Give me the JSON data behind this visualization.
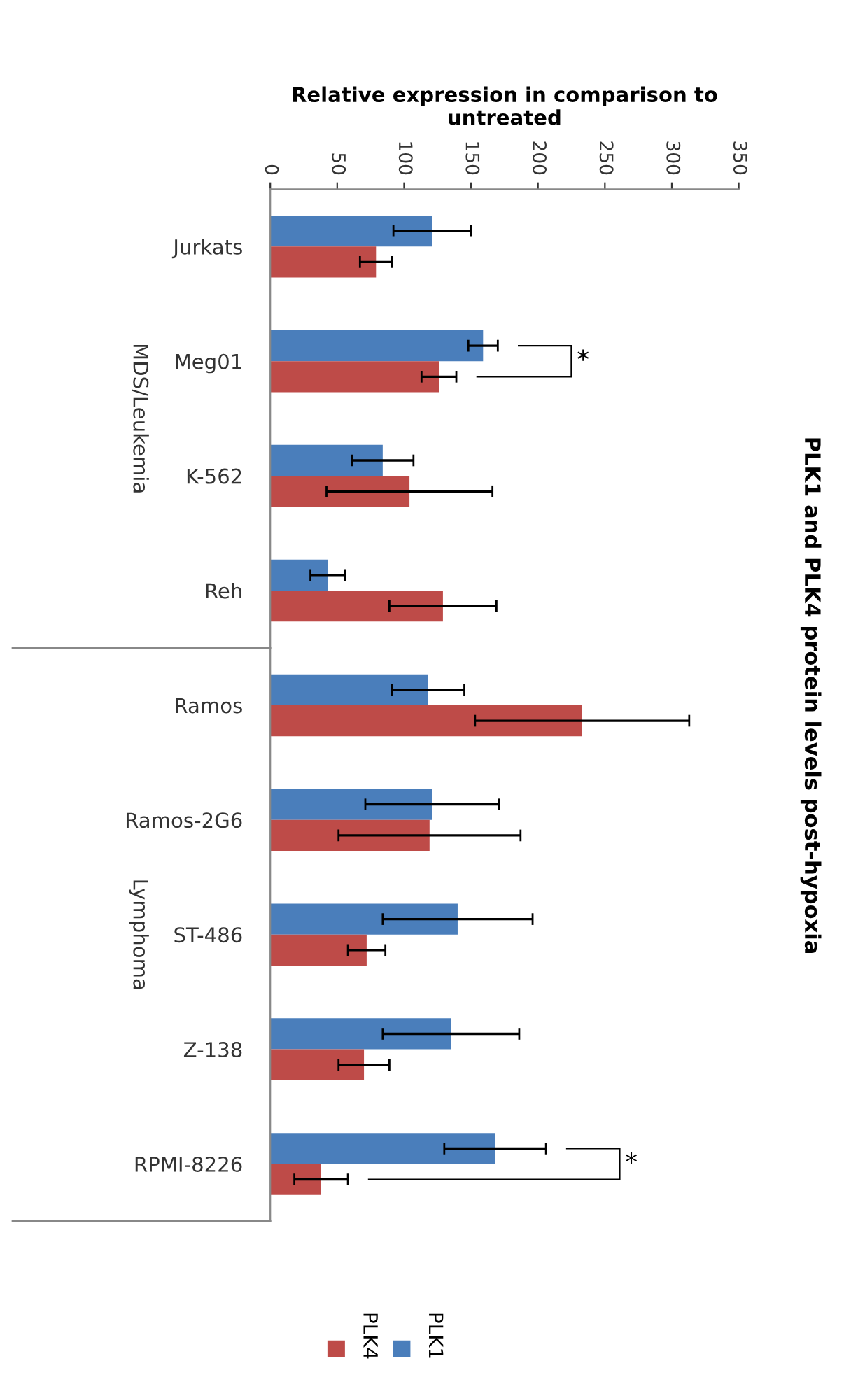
{
  "chart_data": {
    "type": "bar",
    "orientation": "horizontal",
    "title": "PLK1 and PLK4 protein levels post-hypoxia",
    "xlabel": "Relative expression in comparison to\nuntreated",
    "categories": [
      "Jurkats",
      "Meg01",
      "K-562",
      "Reh",
      "Ramos",
      "Ramos-2G6",
      "ST-486",
      "Z-138",
      "RPMI-8226"
    ],
    "series": [
      {
        "name": "PLK1",
        "color": "#4a7ebb",
        "values": [
          121,
          159,
          84,
          43,
          118,
          121,
          140,
          135,
          168
        ],
        "errors": [
          29,
          11,
          23,
          13,
          27,
          50,
          56,
          51,
          38
        ]
      },
      {
        "name": "PLK4",
        "color": "#be4b48",
        "values": [
          79,
          126,
          104,
          129,
          233,
          119,
          72,
          70,
          38
        ],
        "errors": [
          12,
          13,
          62,
          40,
          80,
          68,
          14,
          19,
          20
        ]
      }
    ],
    "xlim": [
      0,
      350
    ],
    "xticks": [
      0,
      50,
      100,
      150,
      200,
      250,
      300,
      350
    ],
    "grid": false,
    "legend": "bottom",
    "annotations": [
      "MDS/Leukemia",
      "Lymphoma",
      "*",
      "*"
    ]
  }
}
